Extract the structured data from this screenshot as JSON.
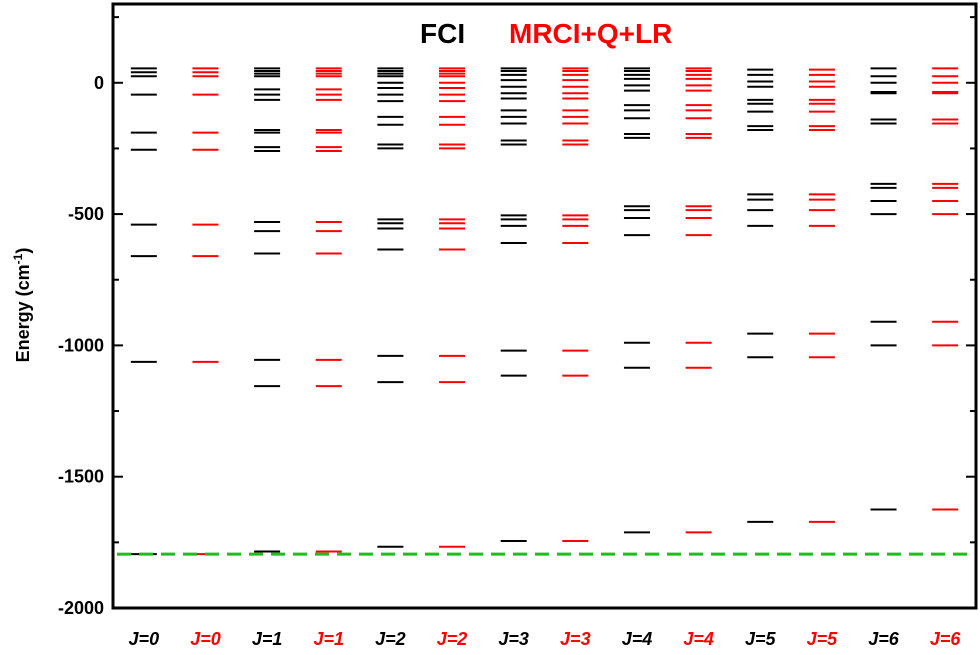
{
  "chart_data": {
    "type": "scatter",
    "subtype": "energy-level-diagram",
    "legend": [
      {
        "name": "FCI",
        "color": "#000000"
      },
      {
        "name": "MRCI+Q+LR",
        "color": "#ff0000"
      }
    ],
    "legend_position": "top-center",
    "ylabel": "Energy (cm",
    "ylabel_sup": "-1",
    "ylabel_close": ")",
    "ylim": [
      -2000,
      300
    ],
    "yticks": [
      0,
      -500,
      -1000,
      -1500,
      -2000
    ],
    "ytick_labels": [
      "0",
      "-500",
      "-1000",
      "-1500",
      "-2000"
    ],
    "grid": false,
    "reference_line": {
      "y": -1795,
      "color": "#22bb22",
      "style": "dashed"
    },
    "categories": [
      "J=0",
      "J=0",
      "J=1",
      "J=1",
      "J=2",
      "J=2",
      "J=3",
      "J=3",
      "J=4",
      "J=4",
      "J=5",
      "J=5",
      "J=6",
      "J=6"
    ],
    "category_colors": [
      "#000000",
      "#ff0000",
      "#000000",
      "#ff0000",
      "#000000",
      "#ff0000",
      "#000000",
      "#ff0000",
      "#000000",
      "#ff0000",
      "#000000",
      "#ff0000",
      "#000000",
      "#ff0000"
    ],
    "series": [
      {
        "name": "FCI",
        "J": 0,
        "levels": [
          55,
          40,
          25,
          -45,
          -190,
          -255,
          -540,
          -660,
          -1063,
          -1795
        ]
      },
      {
        "name": "MRCI+Q+LR",
        "J": 0,
        "levels": [
          55,
          40,
          25,
          -45,
          -190,
          -255,
          -540,
          -660,
          -1063,
          -1795
        ]
      },
      {
        "name": "FCI",
        "J": 1,
        "levels": [
          55,
          45,
          35,
          25,
          -25,
          -45,
          -65,
          -180,
          -190,
          -245,
          -260,
          -530,
          -565,
          -650,
          -1055,
          -1155,
          -1785
        ]
      },
      {
        "name": "MRCI+Q+LR",
        "J": 1,
        "levels": [
          55,
          45,
          35,
          25,
          -25,
          -45,
          -65,
          -180,
          -190,
          -245,
          -260,
          -530,
          -565,
          -650,
          -1055,
          -1155,
          -1785
        ]
      },
      {
        "name": "FCI",
        "J": 2,
        "levels": [
          55,
          45,
          35,
          25,
          0,
          -20,
          -45,
          -70,
          -130,
          -160,
          -235,
          -250,
          -520,
          -535,
          -555,
          -635,
          -1040,
          -1140,
          -1767
        ]
      },
      {
        "name": "MRCI+Q+LR",
        "J": 2,
        "levels": [
          55,
          45,
          35,
          25,
          0,
          -20,
          -45,
          -70,
          -130,
          -160,
          -235,
          -250,
          -520,
          -535,
          -555,
          -635,
          -1040,
          -1140,
          -1767
        ]
      },
      {
        "name": "FCI",
        "J": 3,
        "levels": [
          55,
          45,
          30,
          10,
          -15,
          -40,
          -60,
          -105,
          -130,
          -155,
          -220,
          -235,
          -505,
          -520,
          -545,
          -610,
          -1020,
          -1115,
          -1745
        ]
      },
      {
        "name": "MRCI+Q+LR",
        "J": 3,
        "levels": [
          55,
          45,
          30,
          10,
          -15,
          -40,
          -60,
          -105,
          -130,
          -155,
          -220,
          -235,
          -505,
          -520,
          -545,
          -610,
          -1020,
          -1115,
          -1745
        ]
      },
      {
        "name": "FCI",
        "J": 4,
        "levels": [
          55,
          45,
          30,
          15,
          -10,
          -30,
          -85,
          -105,
          -135,
          -195,
          -210,
          -470,
          -485,
          -515,
          -580,
          -990,
          -1085,
          -1712
        ]
      },
      {
        "name": "MRCI+Q+LR",
        "J": 4,
        "levels": [
          55,
          45,
          30,
          15,
          -10,
          -30,
          -85,
          -105,
          -135,
          -195,
          -210,
          -470,
          -485,
          -515,
          -580,
          -990,
          -1085,
          -1712
        ]
      },
      {
        "name": "FCI",
        "J": 5,
        "levels": [
          50,
          30,
          5,
          -15,
          -65,
          -80,
          -110,
          -165,
          -180,
          -425,
          -445,
          -485,
          -545,
          -955,
          -1045,
          -1672
        ]
      },
      {
        "name": "MRCI+Q+LR",
        "J": 5,
        "levels": [
          50,
          30,
          5,
          -15,
          -65,
          -80,
          -110,
          -165,
          -180,
          -425,
          -445,
          -485,
          -545,
          -955,
          -1045,
          -1672
        ]
      },
      {
        "name": "FCI",
        "J": 6,
        "levels": [
          55,
          25,
          0,
          -35,
          -40,
          -140,
          -155,
          -385,
          -400,
          -450,
          -500,
          -910,
          -1000,
          -1625
        ]
      },
      {
        "name": "MRCI+Q+LR",
        "J": 6,
        "levels": [
          55,
          25,
          0,
          -35,
          -40,
          -140,
          -155,
          -385,
          -400,
          -450,
          -500,
          -910,
          -1000,
          -1625
        ]
      }
    ]
  }
}
